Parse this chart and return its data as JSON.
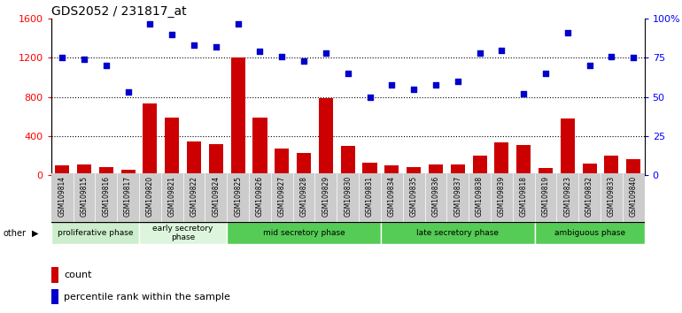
{
  "title": "GDS2052 / 231817_at",
  "samples": [
    "GSM109814",
    "GSM109815",
    "GSM109816",
    "GSM109817",
    "GSM109820",
    "GSM109821",
    "GSM109822",
    "GSM109824",
    "GSM109825",
    "GSM109826",
    "GSM109827",
    "GSM109828",
    "GSM109829",
    "GSM109830",
    "GSM109831",
    "GSM109834",
    "GSM109835",
    "GSM109836",
    "GSM109837",
    "GSM109838",
    "GSM109839",
    "GSM109818",
    "GSM109819",
    "GSM109823",
    "GSM109832",
    "GSM109833",
    "GSM109840"
  ],
  "counts": [
    100,
    115,
    85,
    55,
    730,
    590,
    350,
    320,
    1200,
    590,
    270,
    230,
    790,
    300,
    130,
    100,
    80,
    110,
    115,
    200,
    340,
    310,
    75,
    580,
    120,
    200,
    165
  ],
  "percentiles": [
    75,
    74,
    70,
    53,
    97,
    90,
    83,
    82,
    97,
    79,
    76,
    73,
    78,
    65,
    50,
    58,
    55,
    58,
    60,
    78,
    80,
    52,
    65,
    91,
    70,
    76,
    75
  ],
  "phases": [
    {
      "label": "proliferative phase",
      "start": 0,
      "end": 4,
      "color": "#cceecc"
    },
    {
      "label": "early secretory\nphase",
      "start": 4,
      "end": 8,
      "color": "#ddf5dd"
    },
    {
      "label": "mid secretory phase",
      "start": 8,
      "end": 15,
      "color": "#55cc55"
    },
    {
      "label": "late secretory phase",
      "start": 15,
      "end": 22,
      "color": "#55cc55"
    },
    {
      "label": "ambiguous phase",
      "start": 22,
      "end": 27,
      "color": "#55cc55"
    }
  ],
  "ylim_left": [
    0,
    1600
  ],
  "ylim_right": [
    0,
    100
  ],
  "yticks_left": [
    0,
    400,
    800,
    1200,
    1600
  ],
  "yticks_right": [
    0,
    25,
    50,
    75,
    100
  ],
  "bar_color": "#cc0000",
  "dot_color": "#0000cc",
  "bg_color": "#ffffff",
  "xticklabels_bg": "#cccccc"
}
